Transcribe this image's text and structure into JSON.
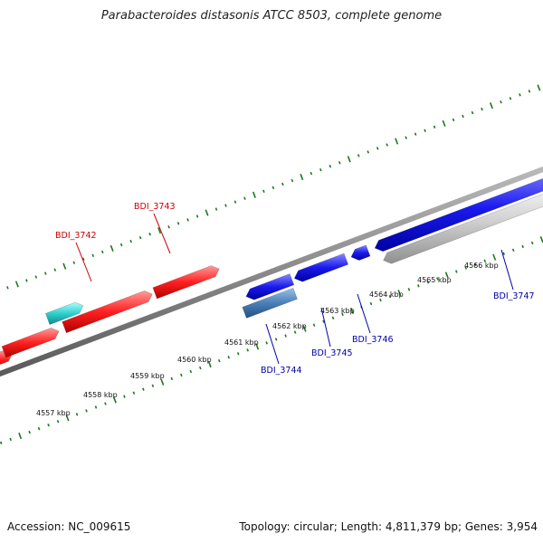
{
  "title": "Parabacteroides distasonis ATCC 8503, complete genome",
  "footer": {
    "accession_label": "Accession:",
    "accession": "NC_009615",
    "info": "Topology: circular; Length: 4,811,379 bp; Genes: 3,954"
  },
  "colors": {
    "forward_gene": "#ff2020",
    "reverse_gene": "#1a1aee",
    "rna_like": "#30d0d0",
    "pseudo_gene": "#4a7fb8",
    "other_gene": "#c8c8c8",
    "backbone": "#8a8a8a",
    "tick": "#1a7a1a",
    "label_forward": "#cc0000",
    "label_reverse": "#0000aa"
  },
  "scale_labels": [
    "4557 kbp",
    "4558 kbp",
    "4559 kbp",
    "4560 kbp",
    "4561 kbp",
    "4562 kbp",
    "4563 kbp",
    "4564 kbp",
    "4565 kbp",
    "4566 kbp"
  ],
  "gene_labels": [
    {
      "name": "BDI_3742",
      "strand": "forward"
    },
    {
      "name": "BDI_3743",
      "strand": "forward"
    },
    {
      "name": "BDI_3744",
      "strand": "reverse"
    },
    {
      "name": "BDI_3745",
      "strand": "reverse"
    },
    {
      "name": "BDI_3746",
      "strand": "reverse"
    },
    {
      "name": "BDI_3747",
      "strand": "reverse"
    }
  ]
}
